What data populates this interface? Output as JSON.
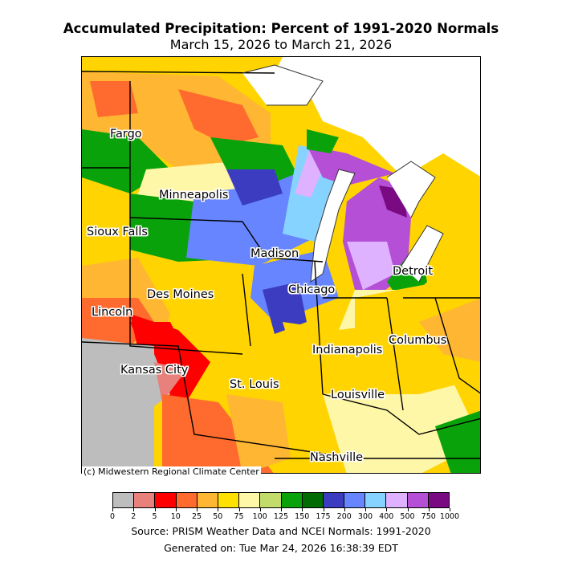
{
  "map": {
    "title": "Accumulated Precipitation: Percent of 1991-2020 Normals",
    "subtitle": "March 15, 2026 to March 21, 2026",
    "credit": "(c) Midwestern Regional Climate Center",
    "source": "Source: PRISM Weather Data and NCEI Normals: 1991-2020",
    "generated": "Generated on: Tue Mar 24, 2026 16:38:39 EDT",
    "cities": [
      {
        "name": "Fargo"
      },
      {
        "name": "Minneapolis"
      },
      {
        "name": "Sioux Falls"
      },
      {
        "name": "Madison"
      },
      {
        "name": "Detroit"
      },
      {
        "name": "Des Moines"
      },
      {
        "name": "Chicago"
      },
      {
        "name": "Lincoln"
      },
      {
        "name": "Columbus"
      },
      {
        "name": "Indianapolis"
      },
      {
        "name": "Kansas City"
      },
      {
        "name": "St. Louis"
      },
      {
        "name": "Louisville"
      },
      {
        "name": "Nashville"
      }
    ],
    "legend": {
      "ticks": [
        "0",
        "2",
        "5",
        "10",
        "25",
        "50",
        "75",
        "100",
        "125",
        "150",
        "175",
        "200",
        "300",
        "400",
        "500",
        "750",
        "1000"
      ],
      "colors": [
        "#bdbdbd",
        "#e8817b",
        "#ff0000",
        "#ff6a2e",
        "#ffb733",
        "#ffe100",
        "#fff7a8",
        "#c2dc6b",
        "#0aa20a",
        "#036b03",
        "#3c3cc0",
        "#6685ff",
        "#87d3ff",
        "#dfb2ff",
        "#b44fd6",
        "#7a0a82"
      ]
    }
  }
}
